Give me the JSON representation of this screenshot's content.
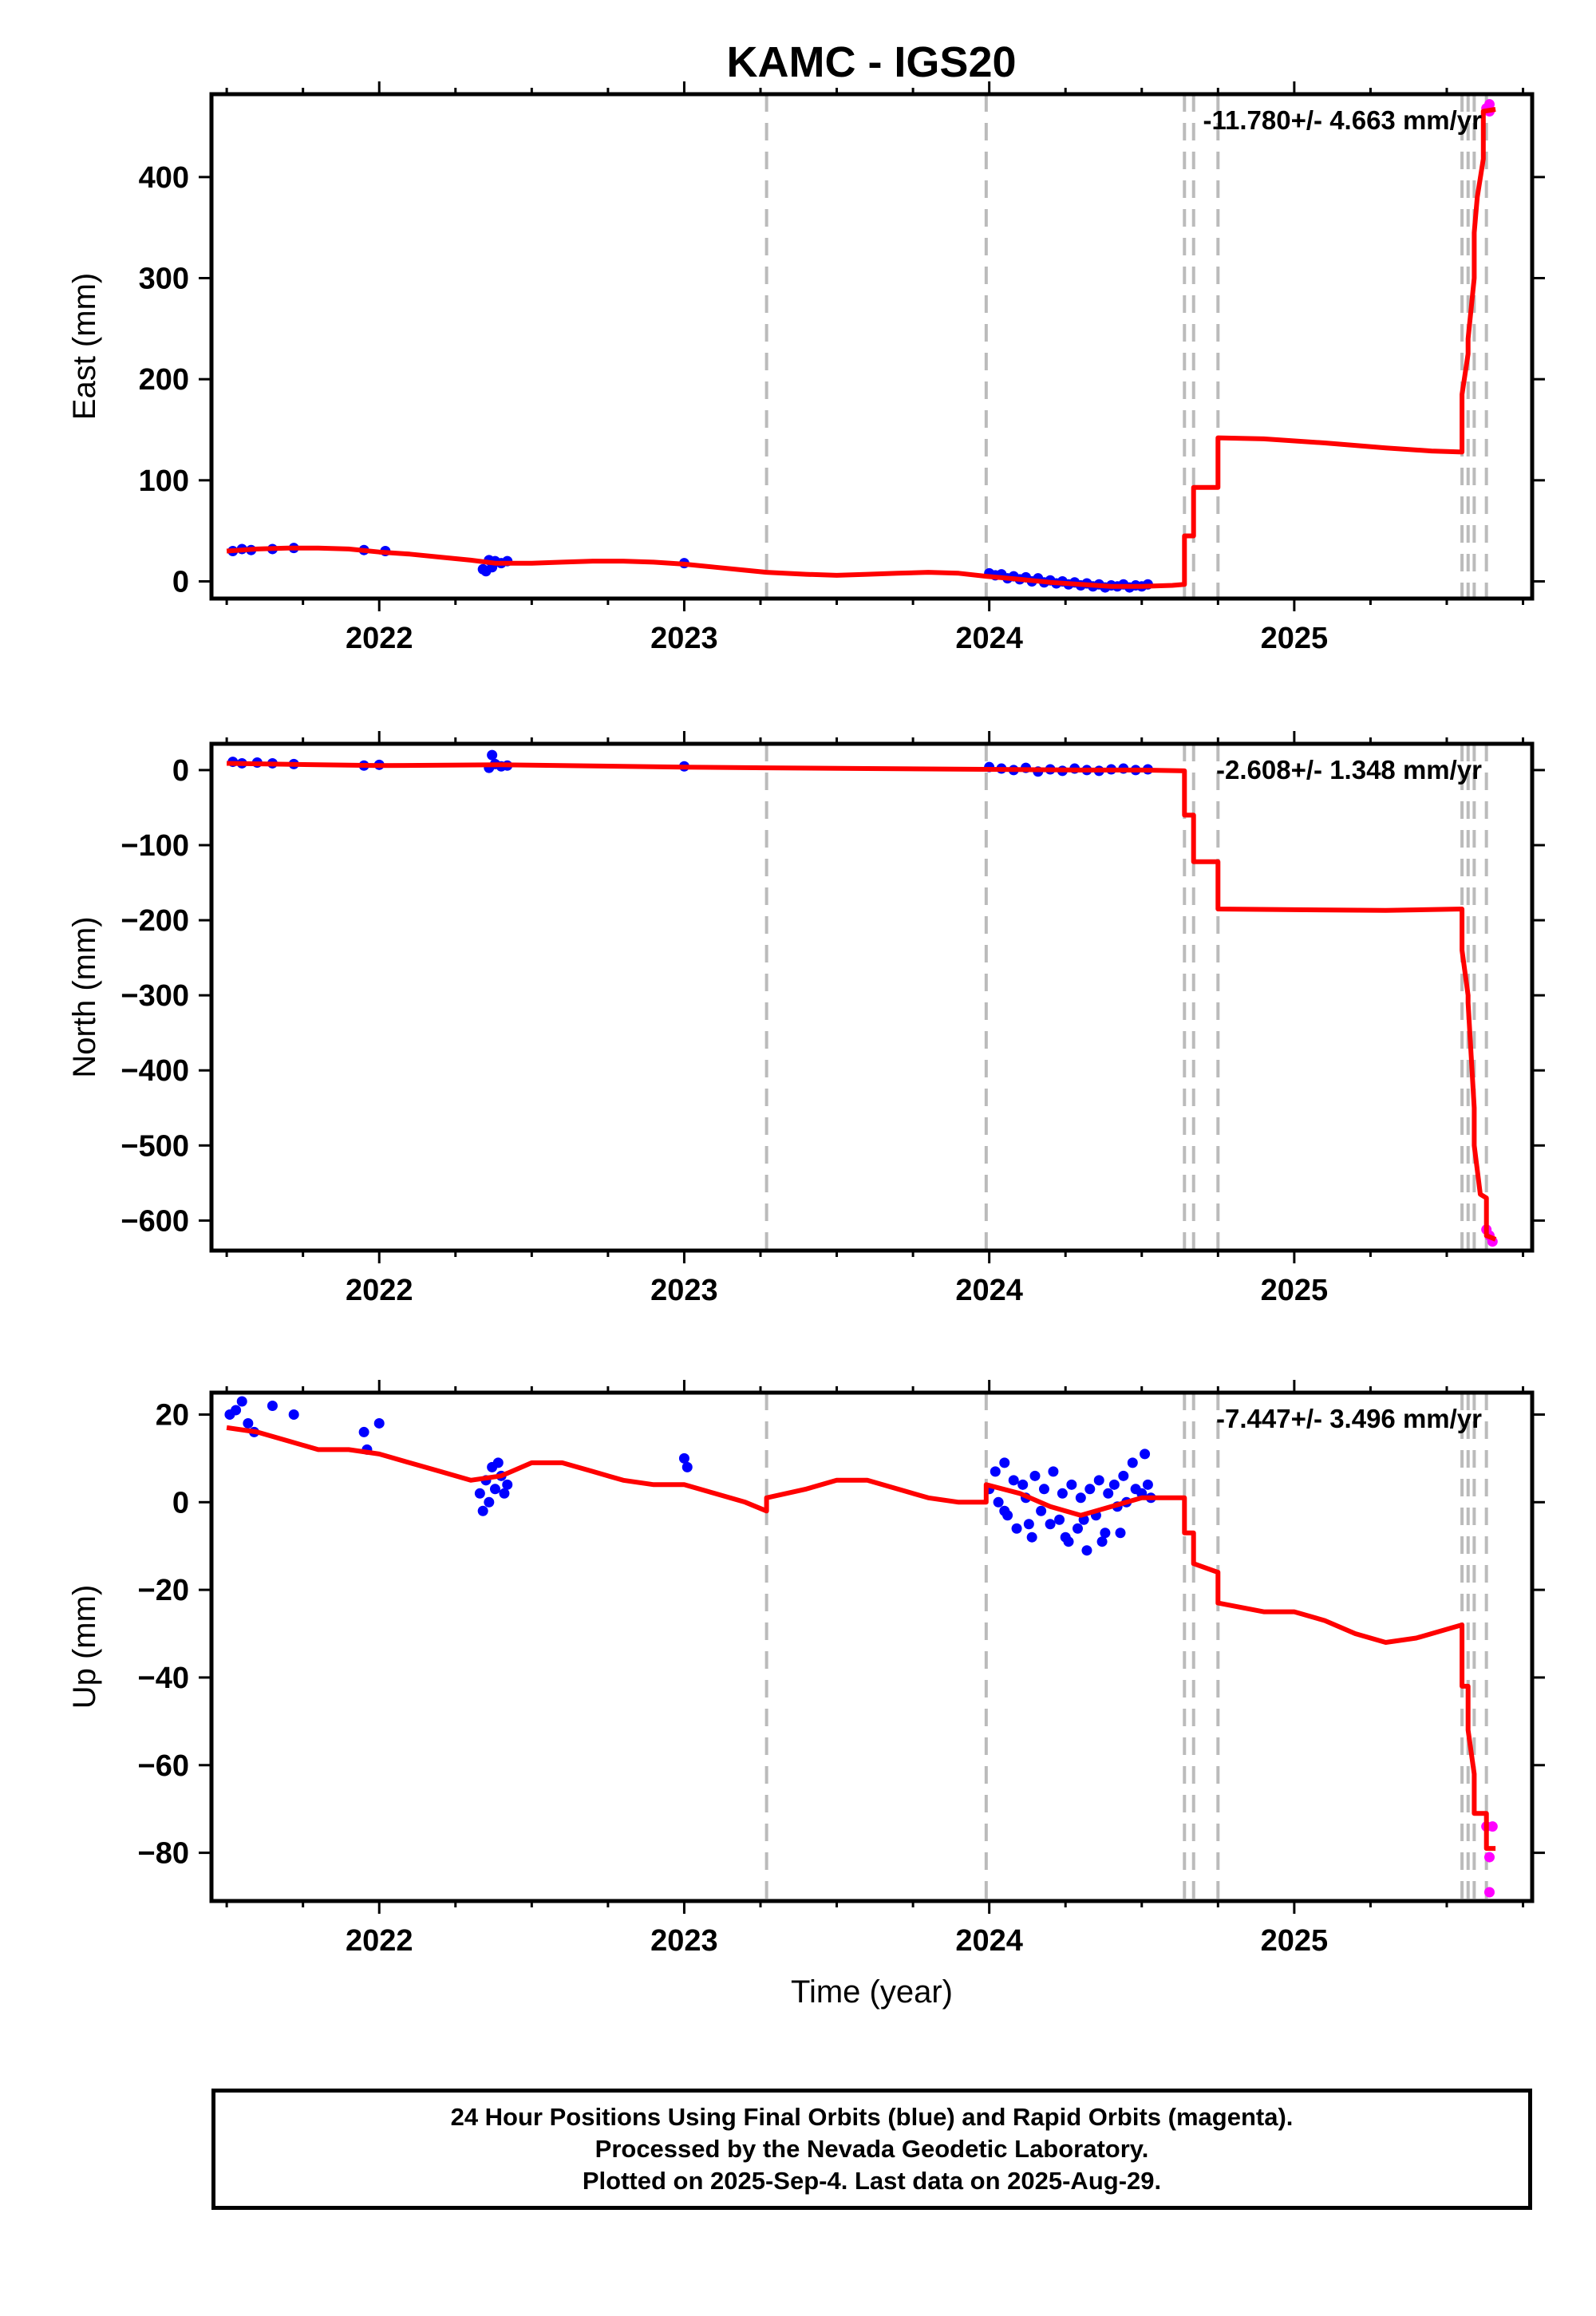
{
  "title": "KAMC - IGS20",
  "colors": {
    "final": "#0000ff",
    "rapid": "#ff00ff",
    "model": "#ff0000",
    "steps": "#bbbbbb"
  },
  "footer": {
    "line1": "24 Hour Positions Using Final Orbits (blue) and Rapid Orbits (magenta).",
    "line2": "Processed by the Nevada Geodetic Laboratory.",
    "line3": "Plotted on 2025-Sep-4. Last data on 2025-Aug-29."
  },
  "chart_data": [
    {
      "type": "scatter",
      "component": "east",
      "ylabel": "East (mm)",
      "xlabel": "",
      "xlim": [
        2021.45,
        2025.78
      ],
      "ylim": [
        -17,
        482
      ],
      "yticks": [
        0,
        100,
        200,
        300,
        400
      ],
      "xticks": [
        2022,
        2023,
        2024,
        2025
      ],
      "rate_label": "-11.780+/- 4.663 mm/yr",
      "step_epochs": [
        2023.27,
        2023.99,
        2024.64,
        2024.67,
        2024.75,
        2025.55,
        2025.57,
        2025.59,
        2025.63
      ],
      "model": {
        "x": [
          2021.5,
          2021.6,
          2021.7,
          2021.8,
          2021.9,
          2022.0,
          2022.1,
          2022.2,
          2022.3,
          2022.38,
          2022.5,
          2022.6,
          2022.7,
          2022.8,
          2022.9,
          2023.0,
          2023.1,
          2023.2,
          2023.27,
          2023.4,
          2023.5,
          2023.6,
          2023.7,
          2023.8,
          2023.9,
          2023.99,
          2024.1,
          2024.2,
          2024.3,
          2024.4,
          2024.5,
          2024.6,
          2024.64,
          2024.64,
          2024.67,
          2024.67,
          2024.75,
          2024.75,
          2024.9,
          2025.1,
          2025.3,
          2025.45,
          2025.55,
          2025.55,
          2025.57,
          2025.57,
          2025.59,
          2025.59,
          2025.6,
          2025.62,
          2025.62,
          2025.66
        ],
        "y": [
          30,
          32,
          33,
          33,
          32,
          29,
          27,
          24,
          21,
          18,
          18,
          19,
          20,
          20,
          19,
          17,
          14,
          11,
          9,
          7,
          6,
          7,
          8,
          9,
          8,
          5,
          2,
          -1,
          -3,
          -5,
          -5,
          -4,
          -3,
          45,
          45,
          93,
          93,
          142,
          141,
          137,
          132,
          129,
          128,
          185,
          225,
          240,
          300,
          345,
          380,
          418,
          465,
          467
        ]
      },
      "final": {
        "x": [
          2021.52,
          2021.55,
          2021.58,
          2021.65,
          2021.72,
          2021.95,
          2022.02,
          2022.34,
          2022.35,
          2022.36,
          2022.37,
          2022.38,
          2022.4,
          2022.42,
          2023.0,
          2024.0,
          2024.02,
          2024.04,
          2024.06,
          2024.08,
          2024.1,
          2024.12,
          2024.14,
          2024.16,
          2024.18,
          2024.2,
          2024.22,
          2024.24,
          2024.26,
          2024.28,
          2024.3,
          2024.32,
          2024.34,
          2024.36,
          2024.38,
          2024.4,
          2024.42,
          2024.44,
          2024.46,
          2024.48,
          2024.5,
          2024.52
        ],
        "y": [
          30,
          32,
          31,
          32,
          33,
          31,
          30,
          12,
          10,
          21,
          14,
          20,
          18,
          20,
          18,
          8,
          6,
          7,
          3,
          5,
          2,
          4,
          0,
          3,
          -1,
          1,
          -2,
          0,
          -3,
          -1,
          -4,
          -2,
          -5,
          -3,
          -6,
          -4,
          -5,
          -3,
          -6,
          -4,
          -5,
          -3
        ]
      },
      "rapid": {
        "x": [
          2025.63,
          2025.64,
          2025.64
        ],
        "y": [
          468,
          472,
          465
        ]
      }
    },
    {
      "type": "scatter",
      "component": "north",
      "ylabel": "North (mm)",
      "xlabel": "",
      "xlim": [
        2021.45,
        2025.78
      ],
      "ylim": [
        -640,
        35
      ],
      "yticks": [
        0,
        -100,
        -200,
        -300,
        -400,
        -500,
        -600
      ],
      "xticks": [
        2022,
        2023,
        2024,
        2025
      ],
      "rate_label": "-2.608+/- 1.348 mm/yr",
      "step_epochs": [
        2023.27,
        2023.99,
        2024.64,
        2024.67,
        2024.75,
        2025.55,
        2025.57,
        2025.59,
        2025.63
      ],
      "model": {
        "x": [
          2021.5,
          2021.8,
          2022.0,
          2022.4,
          2022.8,
          2023.0,
          2023.27,
          2023.6,
          2023.99,
          2024.3,
          2024.5,
          2024.64,
          2024.64,
          2024.67,
          2024.67,
          2024.75,
          2024.75,
          2025.0,
          2025.3,
          2025.55,
          2025.55,
          2025.57,
          2025.57,
          2025.59,
          2025.59,
          2025.61,
          2025.63,
          2025.63,
          2025.66
        ],
        "y": [
          9,
          7,
          6,
          7,
          5,
          4,
          3,
          2,
          1,
          0,
          0,
          -1,
          -60,
          -60,
          -122,
          -122,
          -185,
          -186,
          -187,
          -185,
          -240,
          -300,
          -310,
          -450,
          -500,
          -565,
          -570,
          -620,
          -625
        ]
      },
      "final": {
        "x": [
          2021.52,
          2021.55,
          2021.6,
          2021.65,
          2021.72,
          2021.95,
          2022.0,
          2022.36,
          2022.37,
          2022.38,
          2022.4,
          2022.42,
          2023.0,
          2024.0,
          2024.04,
          2024.08,
          2024.12,
          2024.16,
          2024.2,
          2024.24,
          2024.28,
          2024.32,
          2024.36,
          2024.4,
          2024.44,
          2024.48,
          2024.52
        ],
        "y": [
          11,
          9,
          10,
          9,
          8,
          6,
          7,
          3,
          20,
          8,
          5,
          6,
          5,
          4,
          2,
          0,
          3,
          -2,
          1,
          -1,
          2,
          0,
          -1,
          1,
          2,
          0,
          1
        ]
      },
      "rapid": {
        "x": [
          2025.63,
          2025.64,
          2025.65
        ],
        "y": [
          -612,
          -620,
          -628
        ]
      }
    },
    {
      "type": "scatter",
      "component": "up",
      "ylabel": "Up (mm)",
      "xlabel": "Time (year)",
      "xlim": [
        2021.45,
        2025.78
      ],
      "ylim": [
        -91,
        25
      ],
      "yticks": [
        20,
        0,
        -20,
        -40,
        -60,
        -80
      ],
      "xticks": [
        2022,
        2023,
        2024,
        2025
      ],
      "rate_label": "-7.447+/- 3.496 mm/yr",
      "step_epochs": [
        2023.27,
        2023.99,
        2024.64,
        2024.67,
        2024.75,
        2025.55,
        2025.57,
        2025.59,
        2025.63
      ],
      "model": {
        "x": [
          2021.5,
          2021.6,
          2021.7,
          2021.8,
          2021.9,
          2022.0,
          2022.1,
          2022.2,
          2022.3,
          2022.4,
          2022.5,
          2022.6,
          2022.7,
          2022.8,
          2022.9,
          2023.0,
          2023.1,
          2023.2,
          2023.27,
          2023.27,
          2023.4,
          2023.5,
          2023.6,
          2023.7,
          2023.8,
          2023.9,
          2023.99,
          2023.99,
          2024.1,
          2024.2,
          2024.3,
          2024.4,
          2024.5,
          2024.6,
          2024.64,
          2024.64,
          2024.67,
          2024.67,
          2024.75,
          2024.75,
          2024.9,
          2025.0,
          2025.1,
          2025.2,
          2025.3,
          2025.4,
          2025.55,
          2025.55,
          2025.57,
          2025.57,
          2025.59,
          2025.59,
          2025.63,
          2025.63,
          2025.66
        ],
        "y": [
          17,
          16,
          14,
          12,
          12,
          11,
          9,
          7,
          5,
          6,
          9,
          9,
          7,
          5,
          4,
          4,
          2,
          0,
          -2,
          1,
          3,
          5,
          5,
          3,
          1,
          0,
          0,
          4,
          2,
          -1,
          -3,
          -1,
          1,
          1,
          1,
          -7,
          -7,
          -14,
          -16,
          -23,
          -25,
          -25,
          -27,
          -30,
          -32,
          -31,
          -28,
          -42,
          -42,
          -52,
          -62,
          -71,
          -71,
          -79,
          -79
        ]
      },
      "final": {
        "x": [
          2021.51,
          2021.53,
          2021.55,
          2021.57,
          2021.59,
          2021.65,
          2021.72,
          2021.95,
          2021.96,
          2022.0,
          2022.33,
          2022.34,
          2022.35,
          2022.36,
          2022.37,
          2022.38,
          2022.39,
          2022.4,
          2022.41,
          2022.42,
          2023.0,
          2023.01,
          2024.0,
          2024.02,
          2024.03,
          2024.05,
          2024.06,
          2024.08,
          2024.09,
          2024.11,
          2024.12,
          2024.14,
          2024.15,
          2024.17,
          2024.18,
          2024.2,
          2024.21,
          2024.23,
          2024.24,
          2024.26,
          2024.27,
          2024.29,
          2024.3,
          2024.32,
          2024.33,
          2024.35,
          2024.36,
          2024.38,
          2024.39,
          2024.41,
          2024.42,
          2024.44,
          2024.45,
          2024.47,
          2024.48,
          2024.5,
          2024.51,
          2024.52,
          2024.53,
          2024.05,
          2024.13,
          2024.25,
          2024.31,
          2024.37,
          2024.43
        ],
        "y": [
          20,
          21,
          23,
          18,
          16,
          22,
          20,
          16,
          12,
          18,
          2,
          -2,
          5,
          0,
          8,
          3,
          9,
          6,
          2,
          4,
          10,
          8,
          3,
          7,
          0,
          9,
          -3,
          5,
          -6,
          4,
          1,
          -8,
          6,
          -2,
          3,
          -5,
          7,
          -4,
          2,
          -9,
          4,
          -6,
          1,
          -11,
          3,
          -3,
          5,
          -7,
          2,
          4,
          -1,
          6,
          0,
          9,
          3,
          2,
          11,
          4,
          1,
          -2,
          -5,
          -8,
          -4,
          -9,
          -7
        ]
      },
      "rapid": {
        "x": [
          2025.63,
          2025.64,
          2025.65,
          2025.64
        ],
        "y": [
          -74,
          -81,
          -74,
          -89
        ]
      }
    }
  ]
}
